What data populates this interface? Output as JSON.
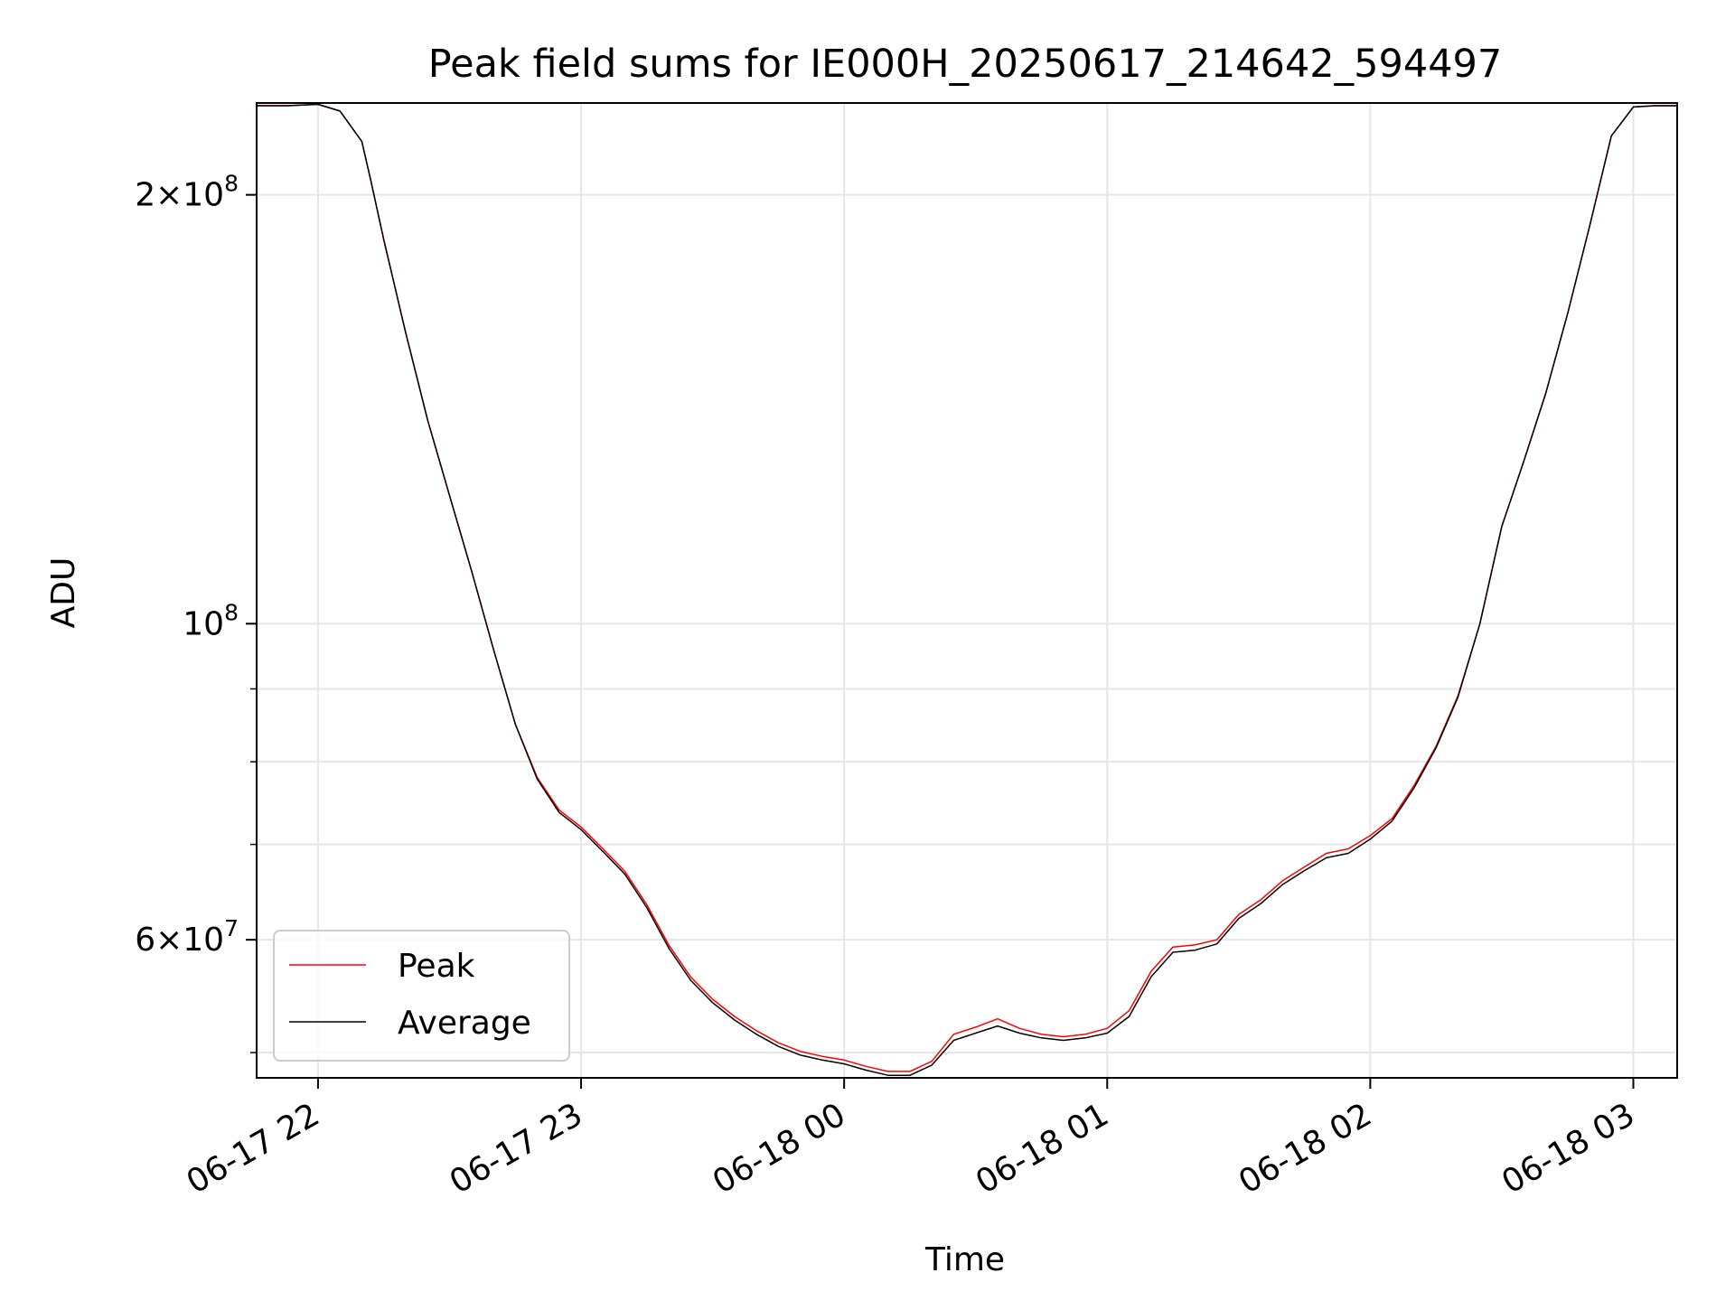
{
  "chart_data": {
    "type": "line",
    "title": "Peak field sums for IE000H_20250617_214642_594497",
    "xlabel": "Time",
    "ylabel": "ADU",
    "y_scale": "log",
    "ylim": [
      48000000,
      232000000
    ],
    "xlim": [
      "2025-06-17 21:46",
      "2025-06-18 03:10"
    ],
    "grid": true,
    "legend_position": "lower-left",
    "x_ticks": [
      {
        "time": "2025-06-17 22:00",
        "label": "06-17 22"
      },
      {
        "time": "2025-06-17 23:00",
        "label": "06-17 23"
      },
      {
        "time": "2025-06-18 00:00",
        "label": "06-18 00"
      },
      {
        "time": "2025-06-18 01:00",
        "label": "06-18 01"
      },
      {
        "time": "2025-06-18 02:00",
        "label": "06-18 02"
      },
      {
        "time": "2025-06-18 03:00",
        "label": "06-18 03"
      }
    ],
    "y_major_ticks": [
      {
        "value": 60000000,
        "mantissa": "6",
        "exponent": "7"
      },
      {
        "value": 100000000,
        "mantissa": "",
        "exponent": "8"
      },
      {
        "value": 200000000,
        "mantissa": "2",
        "exponent": "8"
      }
    ],
    "y_minor_ticks": [
      50000000,
      70000000,
      80000000,
      90000000
    ],
    "x": [
      "2025-06-17 21:46",
      "2025-06-17 21:53",
      "2025-06-17 22:00",
      "2025-06-17 22:05",
      "2025-06-17 22:10",
      "2025-06-17 22:12",
      "2025-06-17 22:15",
      "2025-06-17 22:20",
      "2025-06-17 22:25",
      "2025-06-17 22:30",
      "2025-06-17 22:35",
      "2025-06-17 22:40",
      "2025-06-17 22:45",
      "2025-06-17 22:50",
      "2025-06-17 22:55",
      "2025-06-17 23:00",
      "2025-06-17 23:05",
      "2025-06-17 23:10",
      "2025-06-17 23:15",
      "2025-06-17 23:20",
      "2025-06-17 23:25",
      "2025-06-17 23:30",
      "2025-06-17 23:35",
      "2025-06-17 23:40",
      "2025-06-17 23:45",
      "2025-06-17 23:50",
      "2025-06-17 23:55",
      "2025-06-18 00:00",
      "2025-06-18 00:05",
      "2025-06-18 00:10",
      "2025-06-18 00:15",
      "2025-06-18 00:20",
      "2025-06-18 00:25",
      "2025-06-18 00:30",
      "2025-06-18 00:35",
      "2025-06-18 00:40",
      "2025-06-18 00:45",
      "2025-06-18 00:50",
      "2025-06-18 00:55",
      "2025-06-18 01:00",
      "2025-06-18 01:05",
      "2025-06-18 01:10",
      "2025-06-18 01:15",
      "2025-06-18 01:20",
      "2025-06-18 01:25",
      "2025-06-18 01:30",
      "2025-06-18 01:35",
      "2025-06-18 01:40",
      "2025-06-18 01:45",
      "2025-06-18 01:50",
      "2025-06-18 01:55",
      "2025-06-18 02:00",
      "2025-06-18 02:05",
      "2025-06-18 02:10",
      "2025-06-18 02:15",
      "2025-06-18 02:20",
      "2025-06-18 02:25",
      "2025-06-18 02:30",
      "2025-06-18 02:35",
      "2025-06-18 02:40",
      "2025-06-18 02:45",
      "2025-06-18 02:50",
      "2025-06-18 02:55",
      "2025-06-18 03:00",
      "2025-06-18 03:05",
      "2025-06-18 03:10"
    ],
    "series": [
      {
        "name": "Peak",
        "color": "#ff0000",
        "values": [
          231000000,
          231000000,
          231500000,
          229000000,
          218000000,
          205000000,
          186000000,
          160000000,
          139000000,
          123000000,
          109000000,
          96000000,
          85000000,
          78000000,
          74000000,
          72000000,
          69500000,
          67000000,
          63500000,
          59500000,
          56500000,
          54500000,
          53000000,
          51800000,
          50800000,
          50100000,
          49700000,
          49400000,
          48900000,
          48500000,
          48500000,
          49300000,
          51500000,
          52100000,
          52800000,
          52000000,
          51500000,
          51300000,
          51500000,
          52000000,
          53500000,
          57000000,
          59300000,
          59500000,
          60000000,
          62500000,
          64000000,
          66000000,
          67500000,
          69000000,
          69500000,
          71000000,
          73000000,
          77000000,
          82000000,
          89000000,
          100000000,
          117000000,
          130000000,
          145000000,
          165000000,
          190000000,
          220000000,
          230500000,
          231000000,
          231000000
        ]
      },
      {
        "name": "Average",
        "color": "#000000",
        "values": [
          231000000,
          231000000,
          231500000,
          229000000,
          218000000,
          205000000,
          186000000,
          160000000,
          139000000,
          123000000,
          109000000,
          96000000,
          85000000,
          77800000,
          73700000,
          71700000,
          69200000,
          66700000,
          63200000,
          59200000,
          56200000,
          54200000,
          52700000,
          51500000,
          50500000,
          49800000,
          49400000,
          49100000,
          48600000,
          48200000,
          48200000,
          49000000,
          51000000,
          51600000,
          52200000,
          51600000,
          51200000,
          51000000,
          51200000,
          51600000,
          53000000,
          56500000,
          58800000,
          59000000,
          59600000,
          62100000,
          63600000,
          65600000,
          67100000,
          68500000,
          69000000,
          70600000,
          72700000,
          76700000,
          81800000,
          88800000,
          100000000,
          117000000,
          130000000,
          145000000,
          165000000,
          190000000,
          220000000,
          230500000,
          231000000,
          231000000
        ]
      }
    ]
  }
}
